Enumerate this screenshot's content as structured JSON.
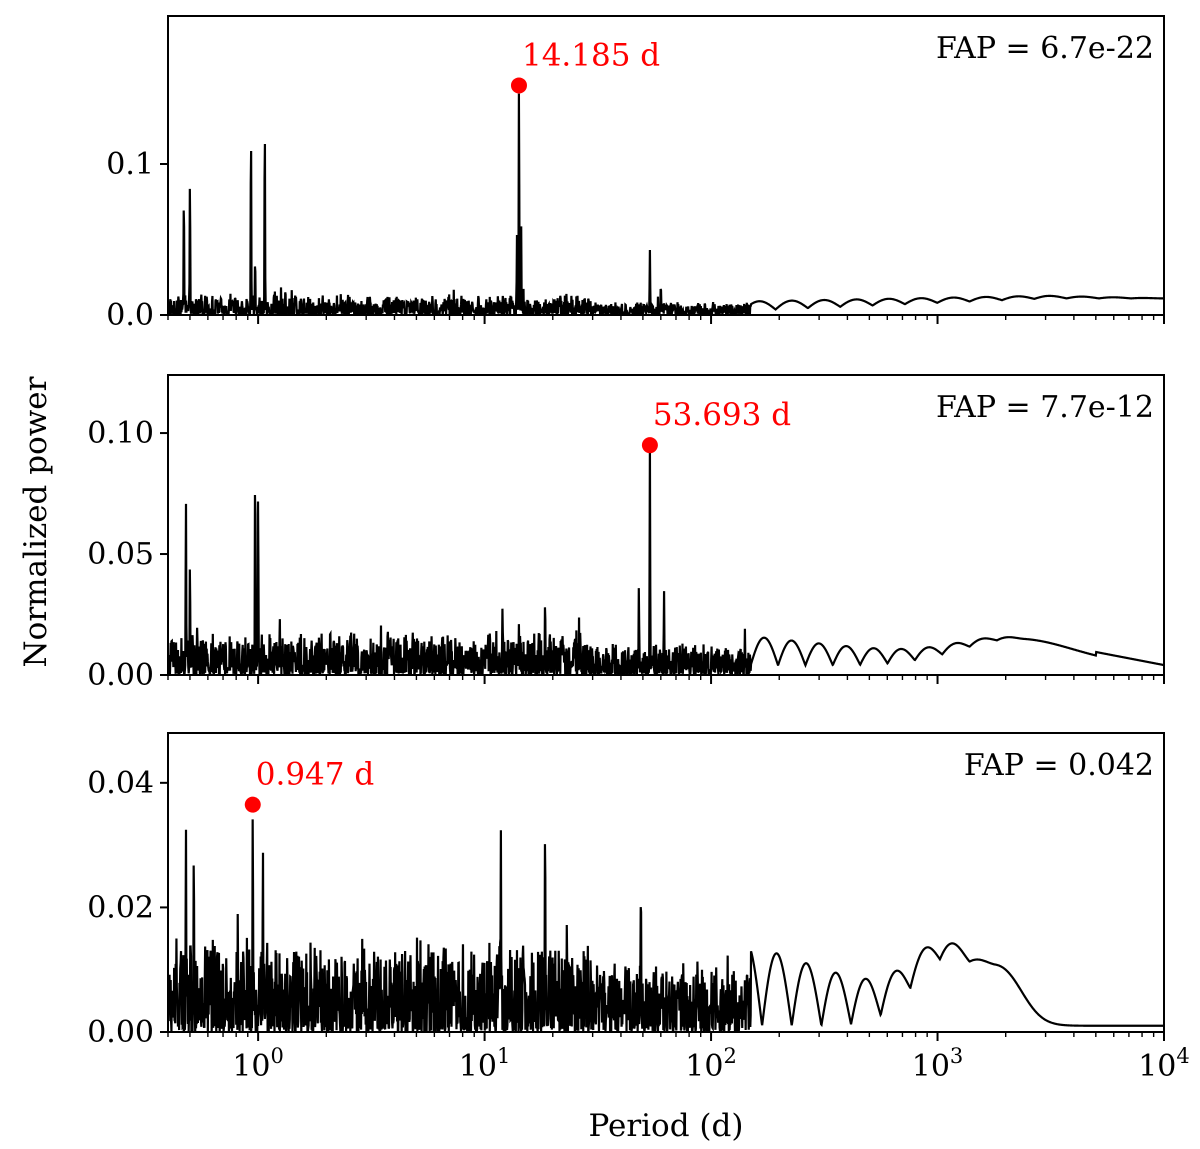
{
  "figure": {
    "ylabel": "Normalized power",
    "xlabel": "Period (d)",
    "x_tick_labels": [
      {
        "base": "10",
        "exp": "0"
      },
      {
        "base": "10",
        "exp": "1"
      },
      {
        "base": "10",
        "exp": "2"
      },
      {
        "base": "10",
        "exp": "3"
      },
      {
        "base": "10",
        "exp": "4"
      }
    ]
  },
  "chart_data": [
    {
      "type": "line",
      "xscale": "log",
      "xlim": [
        0.4,
        10000
      ],
      "ylim": [
        0,
        0.198
      ],
      "yticks": [
        0.0,
        0.1
      ],
      "ytick_labels": [
        "0.0",
        "0.1"
      ],
      "fap_label": "FAP = 6.7e-22",
      "peak": {
        "period": 14.185,
        "power": 0.152,
        "label": "14.185 d"
      },
      "color": "#000000",
      "peak_color": "#ff0000",
      "features": [
        {
          "period": 0.47,
          "power": 0.08
        },
        {
          "period": 0.5,
          "power": 0.09
        },
        {
          "period": 0.93,
          "power": 0.123
        },
        {
          "period": 0.97,
          "power": 0.038
        },
        {
          "period": 1.07,
          "power": 0.128
        },
        {
          "period": 14.185,
          "power": 0.152
        },
        {
          "period": 13.9,
          "power": 0.053
        },
        {
          "period": 14.5,
          "power": 0.06
        },
        {
          "period": 53.7,
          "power": 0.043
        },
        {
          "period": 60.0,
          "power": 0.021
        }
      ]
    },
    {
      "type": "line",
      "xscale": "log",
      "xlim": [
        0.4,
        10000
      ],
      "ylim": [
        0,
        0.124
      ],
      "yticks": [
        0.0,
        0.05,
        0.1
      ],
      "ytick_labels": [
        "0.00",
        "0.05",
        "0.10"
      ],
      "fap_label": "FAP = 7.7e-12",
      "peak": {
        "period": 53.693,
        "power": 0.095,
        "label": "53.693 d"
      },
      "color": "#000000",
      "peak_color": "#ff0000",
      "features": [
        {
          "period": 0.48,
          "power": 0.073
        },
        {
          "period": 0.5,
          "power": 0.047
        },
        {
          "period": 0.97,
          "power": 0.088
        },
        {
          "period": 1.0,
          "power": 0.076
        },
        {
          "period": 12.0,
          "power": 0.029
        },
        {
          "period": 18.5,
          "power": 0.032
        },
        {
          "period": 48.0,
          "power": 0.037
        },
        {
          "period": 53.693,
          "power": 0.095
        },
        {
          "period": 62.0,
          "power": 0.035
        }
      ]
    },
    {
      "type": "line",
      "xscale": "log",
      "xlim": [
        0.4,
        10000
      ],
      "ylim": [
        0,
        0.048
      ],
      "yticks": [
        0.0,
        0.02,
        0.04
      ],
      "ytick_labels": [
        "0.00",
        "0.02",
        "0.04"
      ],
      "fap_label": "FAP = 0.042",
      "peak": {
        "period": 0.947,
        "power": 0.0365,
        "label": "0.947 d"
      },
      "color": "#000000",
      "peak_color": "#ff0000",
      "features": [
        {
          "period": 0.48,
          "power": 0.0335
        },
        {
          "period": 0.52,
          "power": 0.03
        },
        {
          "period": 0.947,
          "power": 0.0365
        },
        {
          "period": 1.05,
          "power": 0.03
        },
        {
          "period": 11.8,
          "power": 0.0325
        },
        {
          "period": 18.5,
          "power": 0.0345
        },
        {
          "period": 49.0,
          "power": 0.0245
        }
      ]
    }
  ]
}
